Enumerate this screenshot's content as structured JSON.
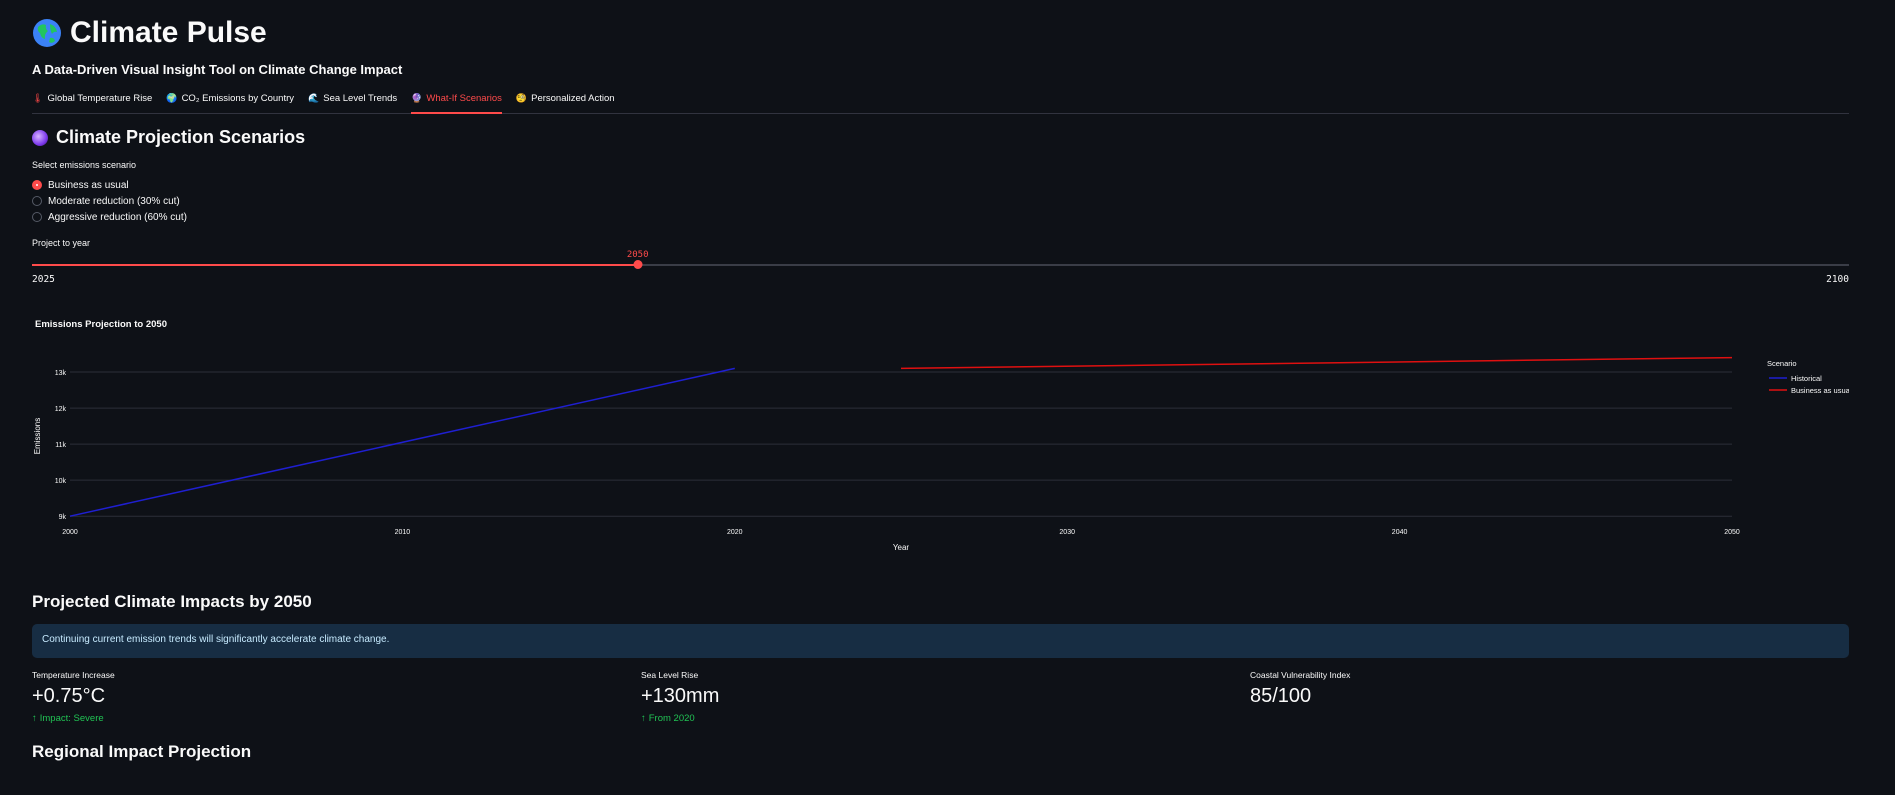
{
  "app": {
    "title": "Climate Pulse",
    "subtitle": "A Data-Driven Visual Insight Tool on Climate Change Impact"
  },
  "tabs": [
    {
      "label": "Global Temperature Rise",
      "icon": "thermometer-icon",
      "active": false
    },
    {
      "label": "CO₂ Emissions by Country",
      "icon": "globe-icon",
      "active": false
    },
    {
      "label": "Sea Level Trends",
      "icon": "wave-icon",
      "active": false
    },
    {
      "label": "What-If Scenarios",
      "icon": "crystal-ball-icon",
      "active": true
    },
    {
      "label": "Personalized Action",
      "icon": "face-icon",
      "active": false
    }
  ],
  "scenario_section": {
    "heading": "Climate Projection Scenarios",
    "radio_label": "Select emissions scenario",
    "options": [
      "Business as usual",
      "Moderate reduction (30% cut)",
      "Aggressive reduction (60% cut)"
    ],
    "selected_index": 0
  },
  "slider": {
    "label": "Project to year",
    "min": 2025,
    "max": 2100,
    "value": 2050,
    "min_label": "2025",
    "max_label": "2100",
    "value_label": "2050"
  },
  "chart_data": {
    "type": "line",
    "title": "Emissions Projection to 2050",
    "xlabel": "Year",
    "ylabel": "Emissions",
    "xlim": [
      2000,
      2050
    ],
    "ylim": [
      8950,
      13500
    ],
    "x_ticks": [
      2000,
      2010,
      2020,
      2030,
      2040,
      2050
    ],
    "y_ticks": [
      9000,
      10000,
      11000,
      12000,
      13000
    ],
    "y_tick_labels": [
      "9k",
      "10k",
      "11k",
      "12k",
      "13k"
    ],
    "legend_title": "Scenario",
    "legend_position": "right",
    "series": [
      {
        "name": "Historical",
        "color": "#1f1fd1",
        "x": [
          2000,
          2020
        ],
        "y": [
          9000,
          13100
        ]
      },
      {
        "name": "Business as usual",
        "color": "#e01010",
        "x": [
          2025,
          2050
        ],
        "y": [
          13100,
          13400
        ]
      }
    ]
  },
  "impacts": {
    "heading": "Projected Climate Impacts by 2050",
    "alert": "Continuing current emission trends will significantly accelerate climate change.",
    "metrics": [
      {
        "label": "Temperature Increase",
        "value": "+0.75°C",
        "delta": "Impact: Severe"
      },
      {
        "label": "Sea Level Rise",
        "value": "+130mm",
        "delta": "From 2020"
      },
      {
        "label": "Coastal Vulnerability Index",
        "value": "85/100",
        "delta": ""
      }
    ]
  },
  "regional": {
    "heading": "Regional Impact Projection"
  },
  "colors": {
    "background": "#0e1117",
    "accent": "#ff4b4b",
    "delta_positive": "#21c354",
    "alert_bg": "#172d43"
  }
}
